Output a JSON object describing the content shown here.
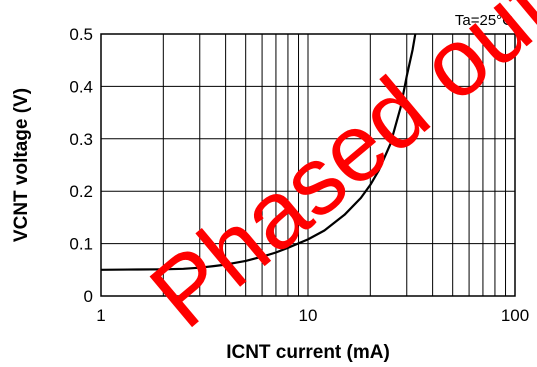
{
  "chart_data": {
    "type": "line",
    "title": "",
    "xlabel": "ICNT current (mA)",
    "ylabel": "VCNT voltage (V)",
    "xscale": "log",
    "xlim": [
      1,
      100
    ],
    "ylim": [
      0,
      0.5
    ],
    "grid": true,
    "x_ticks": [
      1,
      10,
      100
    ],
    "x_tick_labels": [
      "1",
      "10",
      "100"
    ],
    "y_ticks": [
      0,
      0.1,
      0.2,
      0.3,
      0.4,
      0.5
    ],
    "y_tick_labels": [
      "0",
      "0.1",
      "0.2",
      "0.3",
      "0.4",
      "0.5"
    ],
    "annotation": "Ta=25°C",
    "watermark": "Phased out",
    "watermark_color": "#ff0000",
    "series": [
      {
        "color": "#000000",
        "x": [
          1,
          1.5,
          2,
          2.5,
          3,
          3.5,
          4,
          5,
          6,
          7,
          8,
          10,
          12,
          15,
          18,
          20,
          22,
          25,
          28,
          30,
          32,
          33
        ],
        "y": [
          0.05,
          0.0505,
          0.051,
          0.052,
          0.054,
          0.057,
          0.06,
          0.067,
          0.075,
          0.083,
          0.092,
          0.108,
          0.125,
          0.155,
          0.187,
          0.212,
          0.24,
          0.29,
          0.36,
          0.42,
          0.47,
          0.5
        ]
      }
    ]
  }
}
